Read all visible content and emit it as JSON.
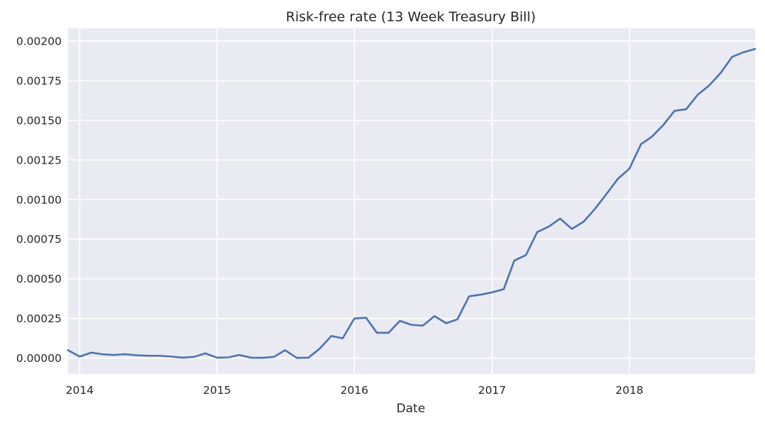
{
  "chart_data": {
    "type": "line",
    "title": "Risk-free rate (13 Week Treasury Bill)",
    "xlabel": "Date",
    "ylabel": "",
    "xlim": [
      "2013-12-01",
      "2018-12-01"
    ],
    "ylim": [
      -0.0001,
      0.00208
    ],
    "x_ticks": [
      {
        "label": "2014",
        "date": "2014-01-01"
      },
      {
        "label": "2015",
        "date": "2015-01-01"
      },
      {
        "label": "2016",
        "date": "2016-01-01"
      },
      {
        "label": "2017",
        "date": "2017-01-01"
      },
      {
        "label": "2018",
        "date": "2018-01-01"
      }
    ],
    "y_ticks": [
      {
        "label": "0.00000",
        "value": 0
      },
      {
        "label": "0.00025",
        "value": 0.00025
      },
      {
        "label": "0.00050",
        "value": 0.0005
      },
      {
        "label": "0.00075",
        "value": 0.00075
      },
      {
        "label": "0.00100",
        "value": 0.001
      },
      {
        "label": "0.00125",
        "value": 0.00125
      },
      {
        "label": "0.00150",
        "value": 0.0015
      },
      {
        "label": "0.00175",
        "value": 0.00175
      },
      {
        "label": "0.00200",
        "value": 0.002
      }
    ],
    "grid": true,
    "background_color": "#eaeaf2",
    "grid_color": "#ffffff",
    "line_color": "#4c72b0",
    "series": [
      {
        "x": [
          "2013-12-01",
          "2014-01-01",
          "2014-02-01",
          "2014-03-01",
          "2014-04-01",
          "2014-05-01",
          "2014-06-01",
          "2014-07-01",
          "2014-08-01",
          "2014-09-01",
          "2014-10-01",
          "2014-11-01",
          "2014-12-01",
          "2015-01-01",
          "2015-02-01",
          "2015-03-01",
          "2015-04-01",
          "2015-05-01",
          "2015-06-01",
          "2015-07-01",
          "2015-08-01",
          "2015-09-01",
          "2015-10-01",
          "2015-11-01",
          "2015-12-01",
          "2016-01-01",
          "2016-02-01",
          "2016-03-01",
          "2016-04-01",
          "2016-05-01",
          "2016-06-01",
          "2016-07-01",
          "2016-08-01",
          "2016-09-01",
          "2016-10-01",
          "2016-11-01",
          "2016-12-01",
          "2017-01-01",
          "2017-02-01",
          "2017-03-01",
          "2017-04-01",
          "2017-05-01",
          "2017-06-01",
          "2017-07-01",
          "2017-08-01",
          "2017-09-01",
          "2017-10-01",
          "2017-11-01",
          "2017-12-01",
          "2018-01-01",
          "2018-02-01",
          "2018-03-01",
          "2018-04-01",
          "2018-05-01",
          "2018-06-01",
          "2018-07-01",
          "2018-08-01",
          "2018-09-01",
          "2018-10-01",
          "2018-11-01",
          "2018-12-01"
        ],
        "values": [
          5e-05,
          1e-05,
          3.5e-05,
          2.5e-05,
          2e-05,
          2.5e-05,
          1.8e-05,
          1.5e-05,
          1.5e-05,
          1e-05,
          3e-06,
          8e-06,
          3e-05,
          3e-06,
          5e-06,
          2e-05,
          3e-06,
          2e-06,
          8e-06,
          5e-05,
          2e-06,
          3e-06,
          6e-05,
          0.00014,
          0.000125,
          0.00025,
          0.000255,
          0.00016,
          0.00016,
          0.000235,
          0.00021,
          0.000205,
          0.000265,
          0.00022,
          0.000245,
          0.00039,
          0.0004,
          0.000415,
          0.000435,
          0.000615,
          0.00065,
          0.000795,
          0.00083,
          0.00088,
          0.000815,
          0.00086,
          0.00094,
          0.001035,
          0.00113,
          0.001195,
          0.00135,
          0.001395,
          0.00147,
          0.00156,
          0.00157,
          0.00166,
          0.00172,
          0.0018,
          0.0019,
          0.00193,
          0.00195
        ]
      }
    ]
  }
}
